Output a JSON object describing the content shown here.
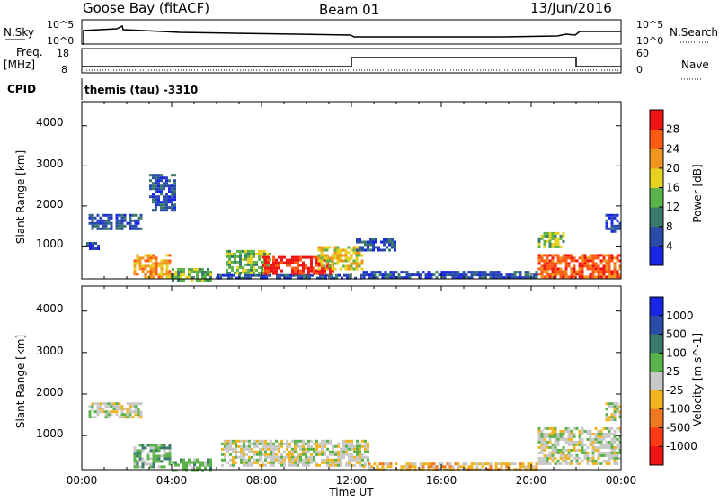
{
  "header": {
    "station": "Goose Bay (fitACF)",
    "beam": "Beam 01",
    "date": "13/Jun/2016"
  },
  "top_panels": {
    "nsky_label": "N.Sky",
    "nsearch_label": "N.Search",
    "nsky_ticks": [
      "10^5",
      "10^0"
    ],
    "nsearch_ticks": [
      "10^5",
      "10^0"
    ],
    "freq_label": "Freq.",
    "freq_unit": "[MHz]",
    "freq_ticks": [
      "18",
      "8"
    ],
    "nave_label": "Nave",
    "nave_ticks": [
      "60",
      "0"
    ],
    "cpid_label": "CPID",
    "cpid_value": "themis (tau) -3310"
  },
  "chart_data": [
    {
      "type": "heatmap",
      "name": "power",
      "ylabel": "Slant Range [km]",
      "yticks": [
        "1000",
        "2000",
        "3000",
        "4000"
      ],
      "ylim": [
        180,
        4600
      ],
      "xlim": [
        0,
        24
      ],
      "colorbar_label": "Power [dB]",
      "colorbar_ticks": [
        "4",
        "8",
        "12",
        "16",
        "20",
        "24",
        "28"
      ],
      "colorbar_colors": [
        "#1a24e6",
        "#2a4ca8",
        "#3a7a6a",
        "#5ab24a",
        "#e6d21e",
        "#f0961e",
        "#ff5a14",
        "#f01414"
      ],
      "regions": [
        {
          "t0": 0.3,
          "t1": 2.6,
          "r0": 1450,
          "r1": 1800,
          "level": 1
        },
        {
          "t0": 0.2,
          "t1": 0.8,
          "r0": 950,
          "r1": 1100,
          "level": 1
        },
        {
          "t0": 2.3,
          "t1": 3.9,
          "r0": 250,
          "r1": 800,
          "level": 5
        },
        {
          "t0": 3.0,
          "t1": 4.1,
          "r0": 1900,
          "r1": 2800,
          "level": 1
        },
        {
          "t0": 4.0,
          "t1": 5.8,
          "r0": 180,
          "r1": 450,
          "level": 3
        },
        {
          "t0": 6.0,
          "t1": 12.5,
          "r0": 180,
          "r1": 300,
          "level": 1
        },
        {
          "t0": 6.4,
          "t1": 8.4,
          "r0": 300,
          "r1": 900,
          "level": 3
        },
        {
          "t0": 8.0,
          "t1": 11.2,
          "r0": 300,
          "r1": 750,
          "level": 7
        },
        {
          "t0": 10.5,
          "t1": 12.5,
          "r0": 400,
          "r1": 1000,
          "level": 4
        },
        {
          "t0": 12.2,
          "t1": 14.0,
          "r0": 900,
          "r1": 1200,
          "level": 1
        },
        {
          "t0": 12.5,
          "t1": 20.3,
          "r0": 180,
          "r1": 380,
          "level": 1
        },
        {
          "t0": 20.3,
          "t1": 21.5,
          "r0": 950,
          "r1": 1350,
          "level": 3
        },
        {
          "t0": 20.3,
          "t1": 24.0,
          "r0": 250,
          "r1": 800,
          "level": 6
        },
        {
          "t0": 23.3,
          "t1": 24.0,
          "r0": 1350,
          "r1": 1800,
          "level": 1
        }
      ]
    },
    {
      "type": "heatmap",
      "name": "velocity",
      "ylabel": "Slant Range [km]",
      "yticks": [
        "1000",
        "2000",
        "3000",
        "4000"
      ],
      "ylim": [
        180,
        4600
      ],
      "xlim": [
        0,
        24
      ],
      "xlabel": "Time UT",
      "xticks": [
        "00:00",
        "04:00",
        "08:00",
        "12:00",
        "16:00",
        "20:00",
        "00:00"
      ],
      "colorbar_label": "Velocity [m s^-1]",
      "colorbar_ticks": [
        "1000",
        "500",
        "100",
        "25",
        "-25",
        "-100",
        "-500",
        "-1000"
      ],
      "colorbar_colors": [
        "#1a24e6",
        "#2a4ca8",
        "#3a7a6a",
        "#5ab24a",
        "#c8c8c8",
        "#f0b41e",
        "#f0781e",
        "#ff3a14",
        "#f01414"
      ],
      "regions": [
        {
          "t0": 0.3,
          "t1": 2.6,
          "r0": 1450,
          "r1": 1800,
          "level": 4
        },
        {
          "t0": 2.3,
          "t1": 3.9,
          "r0": 250,
          "r1": 800,
          "level": 3
        },
        {
          "t0": 4.0,
          "t1": 5.8,
          "r0": 180,
          "r1": 450,
          "level": 3
        },
        {
          "t0": 6.2,
          "t1": 12.8,
          "r0": 250,
          "r1": 900,
          "level": 4
        },
        {
          "t0": 12.5,
          "t1": 20.3,
          "r0": 180,
          "r1": 350,
          "level": 5
        },
        {
          "t0": 20.3,
          "t1": 24.0,
          "r0": 300,
          "r1": 1200,
          "level": 4
        },
        {
          "t0": 23.3,
          "t1": 24.0,
          "r0": 1350,
          "r1": 1800,
          "level": 4
        }
      ]
    }
  ]
}
